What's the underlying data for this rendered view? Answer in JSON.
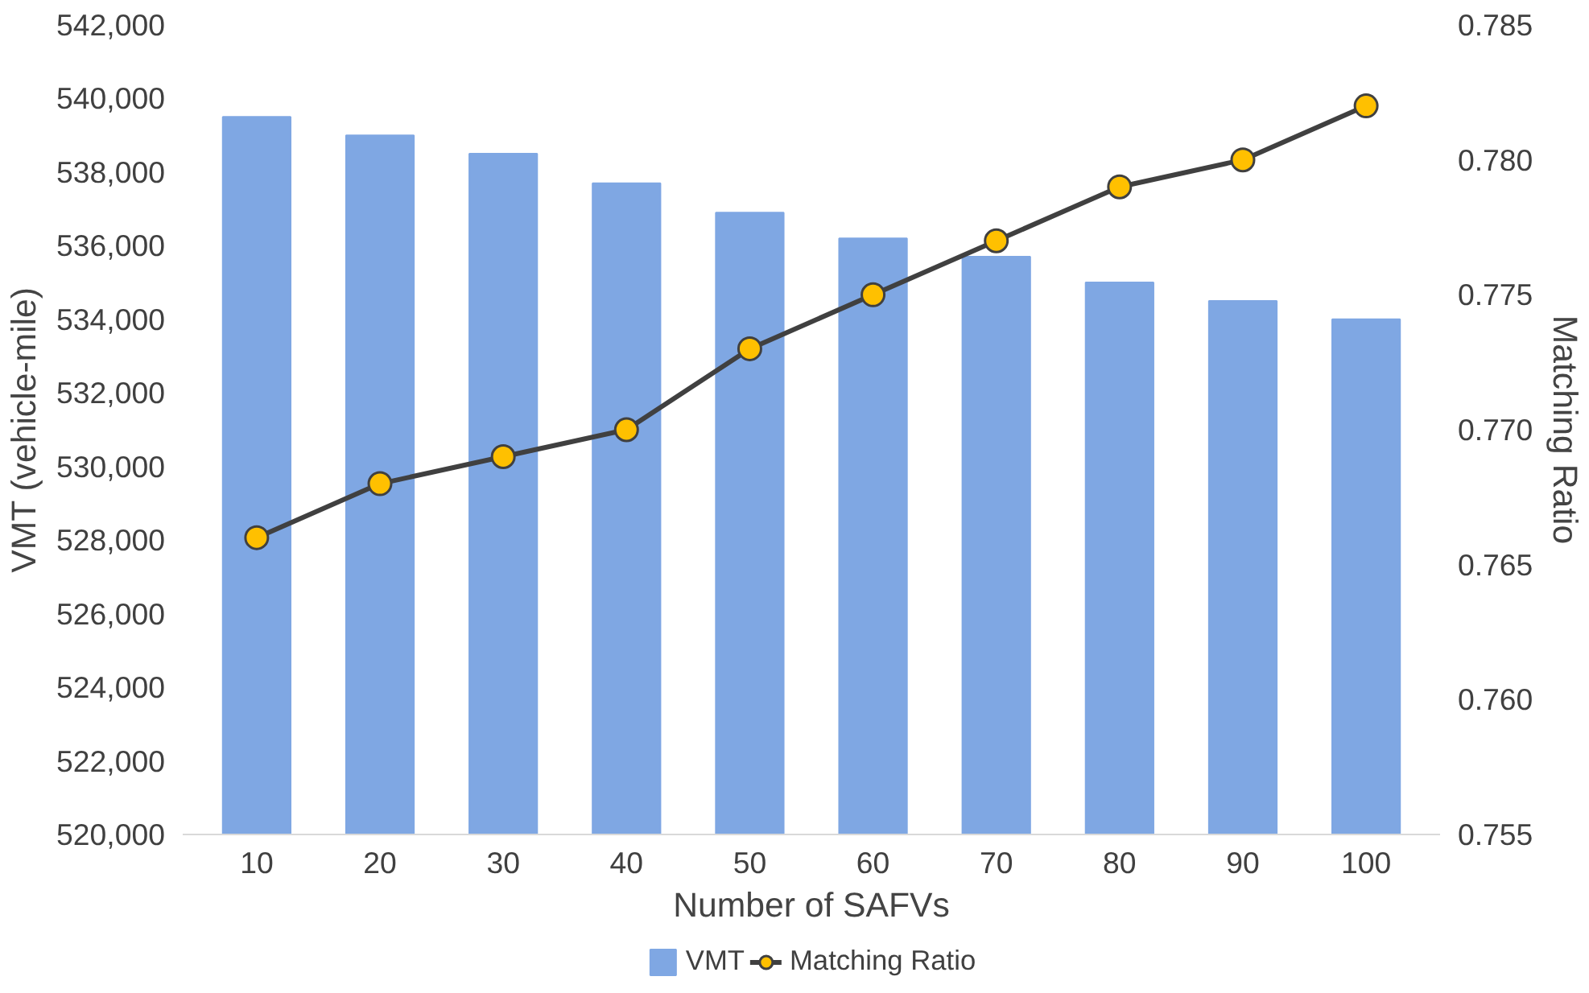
{
  "chart_data": {
    "type": "bar",
    "xlabel": "Number of SAFVs",
    "ylabel": "VMT (vehicle-mile)",
    "y2label": "Matching Ratio",
    "categories": [
      "10",
      "20",
      "30",
      "40",
      "50",
      "60",
      "70",
      "80",
      "90",
      "100"
    ],
    "series": [
      {
        "name": "VMT",
        "color": "#7fa7e3",
        "values": [
          539500,
          539000,
          538500,
          537700,
          536900,
          536200,
          535700,
          535000,
          534500,
          534000
        ]
      },
      {
        "name": "Matching Ratio",
        "type": "line",
        "axis": "y2",
        "color": "#404040",
        "colors": [
          "#ffc000",
          "#ffc000",
          "#ffc000",
          "#ffc000",
          "#ffc000",
          "#ffc000",
          "#ffc000",
          "#ffc000",
          "#ffc000",
          "#ffc000"
        ],
        "values": [
          0.766,
          0.768,
          0.769,
          0.77,
          0.773,
          0.775,
          0.777,
          0.779,
          0.78,
          0.782
        ]
      }
    ],
    "ylim": [
      520000,
      542000
    ],
    "yticks": [
      {
        "value": 520000,
        "label": "520,000"
      },
      {
        "value": 522000,
        "label": "522,000"
      },
      {
        "value": 524000,
        "label": "524,000"
      },
      {
        "value": 526000,
        "label": "526,000"
      },
      {
        "value": 528000,
        "label": "528,000"
      },
      {
        "value": 530000,
        "label": "530,000"
      },
      {
        "value": 532000,
        "label": "532,000"
      },
      {
        "value": 534000,
        "label": "534,000"
      },
      {
        "value": 536000,
        "label": "536,000"
      },
      {
        "value": 538000,
        "label": "538,000"
      },
      {
        "value": 540000,
        "label": "540,000"
      },
      {
        "value": 542000,
        "label": "542,000"
      }
    ],
    "y2lim": [
      0.755,
      0.785
    ],
    "y2ticks": [
      {
        "value": 0.755,
        "label": "0.755"
      },
      {
        "value": 0.76,
        "label": "0.760"
      },
      {
        "value": 0.765,
        "label": "0.765"
      },
      {
        "value": 0.77,
        "label": "0.770"
      },
      {
        "value": 0.775,
        "label": "0.775"
      },
      {
        "value": 0.78,
        "label": "0.780"
      },
      {
        "value": 0.785,
        "label": "0.785"
      }
    ],
    "grid": false,
    "legend": "bottom",
    "marker": "circle",
    "line_style": "solid"
  }
}
